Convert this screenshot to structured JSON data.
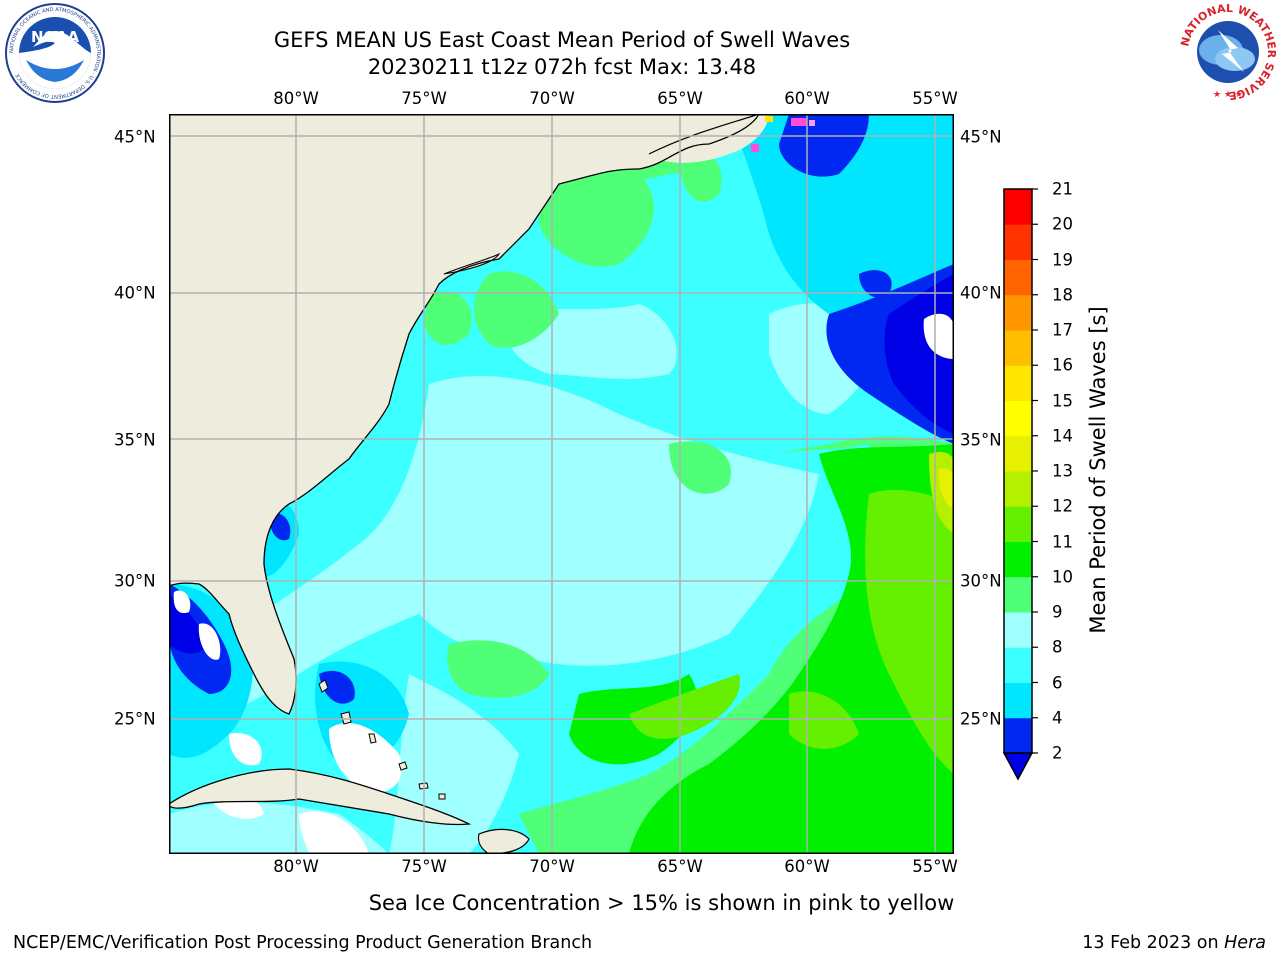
{
  "title": {
    "line1": "GEFS MEAN US East Coast Mean Period of Swell Waves",
    "line2": "20230211 t12z 072h fcst   Max: 13.48"
  },
  "axes": {
    "lon_labels": [
      "80°W",
      "75°W",
      "70°W",
      "65°W",
      "60°W",
      "55°W"
    ],
    "lat_labels": [
      "45°N",
      "40°N",
      "35°N",
      "30°N",
      "25°N"
    ]
  },
  "colorbar": {
    "label": "Mean Period of Swell Waves [s]",
    "ticks": [
      "2",
      "4",
      "6",
      "8",
      "9",
      "10",
      "11",
      "12",
      "13",
      "14",
      "15",
      "16",
      "17",
      "18",
      "19",
      "20",
      "21"
    ],
    "colors": [
      "#0028f0",
      "#00e6ff",
      "#3cffff",
      "#a0ffff",
      "#50ff78",
      "#00f000",
      "#64f000",
      "#b4f000",
      "#e6f000",
      "#ffff00",
      "#ffe600",
      "#ffbe00",
      "#ff9600",
      "#ff6400",
      "#ff3200",
      "#ff0000"
    ],
    "under_color": "#0000e6"
  },
  "caption": "Sea Ice Concentration > 15% is shown in pink to yellow",
  "footer": {
    "left": "NCEP/EMC/Verification Post Processing Product Generation Branch",
    "right_date": "13 Feb 2023 on ",
    "right_machine": "Hera"
  },
  "logos": {
    "left": "NOAA",
    "left_ring_text": "NATIONAL OCEANIC AND ATMOSPHERIC ADMINISTRATION · U.S. DEPARTMENT OF COMMERCE",
    "right_ring_text": "NATIONAL WEATHER SERVICE"
  },
  "map": {
    "land_color": "#eeecdc",
    "grid_color": "#b0b0b0",
    "ocean_base_color": "#3cffff"
  }
}
